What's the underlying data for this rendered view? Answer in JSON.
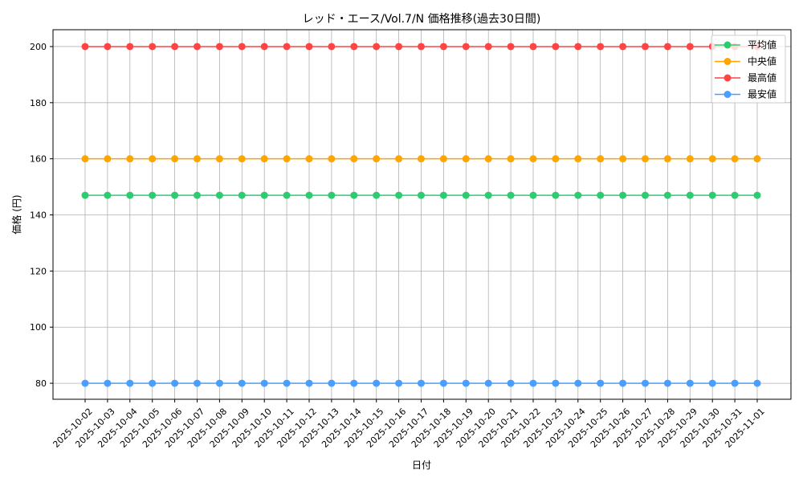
{
  "chart_data": {
    "type": "line",
    "title": "レッド・エース/Vol.7/N 価格推移(過去30日間)",
    "xlabel": "日付",
    "ylabel": "価格 (円)",
    "ylim": [
      74.3,
      206
    ],
    "yticks": [
      80,
      100,
      120,
      140,
      160,
      180,
      200
    ],
    "grid": true,
    "legend_position": "top-right",
    "x": [
      "2025-10-02",
      "2025-10-03",
      "2025-10-04",
      "2025-10-05",
      "2025-10-06",
      "2025-10-07",
      "2025-10-08",
      "2025-10-09",
      "2025-10-10",
      "2025-10-11",
      "2025-10-12",
      "2025-10-13",
      "2025-10-14",
      "2025-10-15",
      "2025-10-16",
      "2025-10-17",
      "2025-10-18",
      "2025-10-19",
      "2025-10-20",
      "2025-10-21",
      "2025-10-22",
      "2025-10-23",
      "2025-10-24",
      "2025-10-25",
      "2025-10-26",
      "2025-10-27",
      "2025-10-28",
      "2025-10-29",
      "2025-10-30",
      "2025-10-31",
      "2025-11-01"
    ],
    "series": [
      {
        "name": "平均値",
        "color": "#2ecc71",
        "value": 147
      },
      {
        "name": "中央値",
        "color": "#ffa500",
        "value": 160
      },
      {
        "name": "最高値",
        "color": "#ff4444",
        "value": 200
      },
      {
        "name": "最安値",
        "color": "#4a9eff",
        "value": 80
      }
    ]
  }
}
